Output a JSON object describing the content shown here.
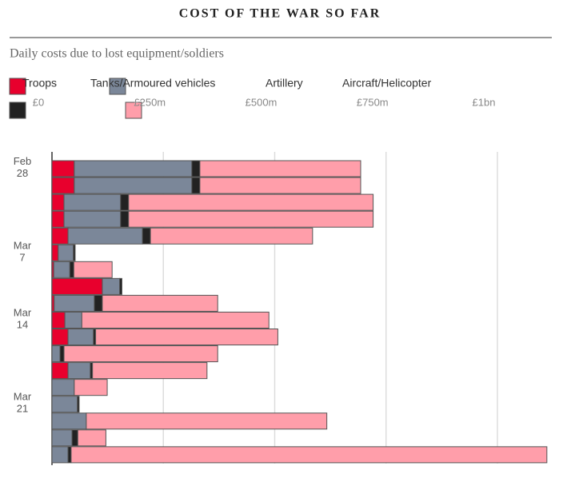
{
  "chart_data": {
    "type": "stacked-bar-horizontal",
    "title": "COST OF THE WAR SO FAR",
    "subtitle": "Daily costs due to lost equipment/soldiers",
    "categories": [
      "Feb 28",
      null,
      null,
      null,
      null,
      "Mar 7",
      null,
      null,
      null,
      "Mar 14",
      null,
      null,
      null,
      null,
      "Mar 21",
      null,
      null,
      null
    ],
    "series": [
      {
        "name": "Troops",
        "color": "#e8002d",
        "values": [
          50,
          50,
          27,
          27,
          36,
          14,
          4,
          113,
          5,
          29,
          36,
          0,
          36,
          0,
          0,
          0,
          0,
          0
        ]
      },
      {
        "name": "Tanks/Armoured vehicles",
        "color": "#7b8799",
        "values": [
          264,
          264,
          127,
          127,
          167,
          34,
          36,
          39,
          90,
          38,
          57,
          18,
          50,
          50,
          57,
          77,
          45,
          36
        ]
      },
      {
        "name": "Artillery",
        "color": "#222222",
        "values": [
          18,
          18,
          18,
          18,
          18,
          4,
          9,
          5,
          18,
          0,
          5,
          9,
          5,
          0,
          4,
          0,
          13,
          7
        ]
      },
      {
        "name": "Aircraft/Helicopter",
        "color": "#ff9eaa",
        "values": [
          361,
          361,
          549,
          549,
          364,
          0,
          86,
          0,
          259,
          420,
          409,
          345,
          257,
          74,
          0,
          540,
          63,
          1068
        ]
      }
    ],
    "xlim": [
      0,
      1110
    ],
    "xticks": [
      {
        "value": 0,
        "label": "£0"
      },
      {
        "value": 250,
        "label": "£250m"
      },
      {
        "value": 500,
        "label": "£500m"
      },
      {
        "value": 750,
        "label": "£750m"
      },
      {
        "value": 1000,
        "label": "£1bn"
      }
    ],
    "grid": true
  }
}
